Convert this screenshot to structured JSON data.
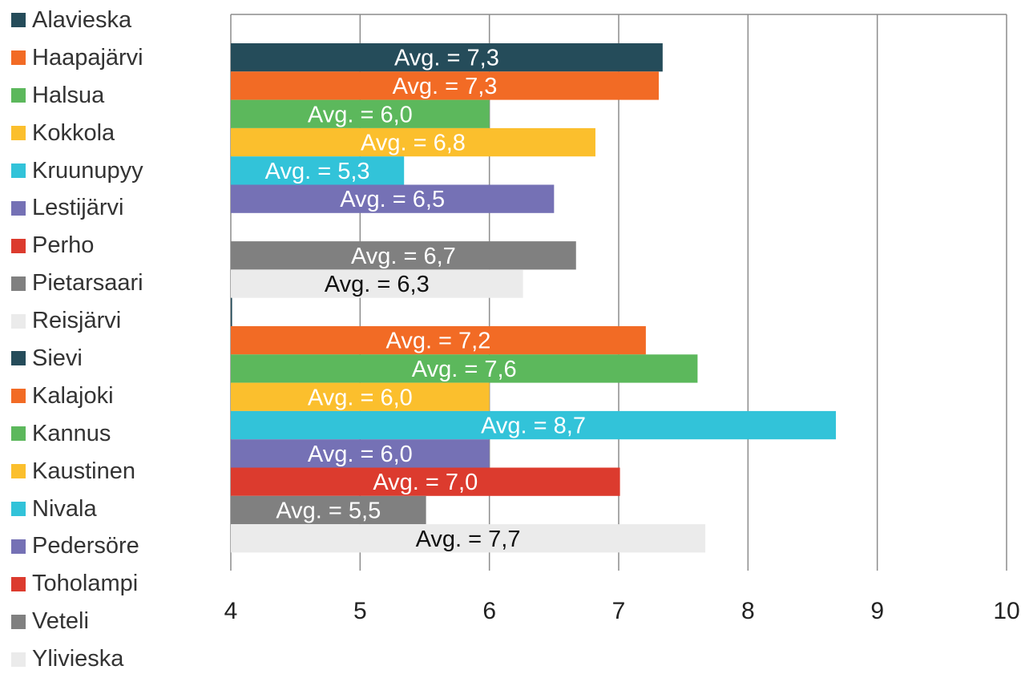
{
  "chart_data": {
    "type": "bar",
    "orientation": "horizontal",
    "xlim": [
      4,
      10
    ],
    "x_ticks": [
      "4",
      "5",
      "6",
      "7",
      "8",
      "9",
      "10"
    ],
    "grid": true,
    "legend_position": "left",
    "series": [
      {
        "name": "Alavieska",
        "value": 7.34,
        "label": "Avg. = 7,3",
        "color": "#254c5a"
      },
      {
        "name": "Haapajärvi",
        "value": 7.31,
        "label": "Avg. = 7,3",
        "color": "#f26b25"
      },
      {
        "name": "Halsua",
        "value": 6.0,
        "label": "Avg. = 6,0",
        "color": "#5cb85c"
      },
      {
        "name": "Kokkola",
        "value": 6.82,
        "label": "Avg. = 6,8",
        "color": "#fbbf2d"
      },
      {
        "name": "Kruunupyy",
        "value": 5.34,
        "label": "Avg. = 5,3",
        "color": "#32c3d9"
      },
      {
        "name": "Lestijärvi",
        "value": 6.5,
        "label": "Avg. = 6,5",
        "color": "#7571b5"
      },
      {
        "name": "Perho",
        "value": null,
        "label": "",
        "color": "#dc3b2e"
      },
      {
        "name": "Pietarsaari",
        "value": 6.67,
        "label": "Avg. = 6,7",
        "color": "#808080"
      },
      {
        "name": "Reisjärvi",
        "value": 6.26,
        "label": "Avg. = 6,3",
        "color": "#ebebeb"
      },
      {
        "name": "Sievi",
        "value": 4.01,
        "label": "",
        "color": "#254c5a"
      },
      {
        "name": "Kalajoki",
        "value": 7.21,
        "label": "Avg. = 7,2",
        "color": "#f26b25"
      },
      {
        "name": "Kannus",
        "value": 7.61,
        "label": "Avg. = 7,6",
        "color": "#5cb85c"
      },
      {
        "name": "Kaustinen",
        "value": 6.0,
        "label": "Avg. = 6,0",
        "color": "#fbbf2d"
      },
      {
        "name": "Nivala",
        "value": 8.68,
        "label": "Avg. = 8,7",
        "color": "#32c3d9"
      },
      {
        "name": "Pedersöre",
        "value": 6.0,
        "label": "Avg. = 6,0",
        "color": "#7571b5"
      },
      {
        "name": "Toholampi",
        "value": 7.01,
        "label": "Avg. = 7,0",
        "color": "#dc3b2e"
      },
      {
        "name": "Veteli",
        "value": 5.51,
        "label": "Avg. = 5,5",
        "color": "#808080"
      },
      {
        "name": "Ylivieska",
        "value": 7.67,
        "label": "Avg. = 7,7",
        "color": "#ebebeb"
      }
    ]
  }
}
